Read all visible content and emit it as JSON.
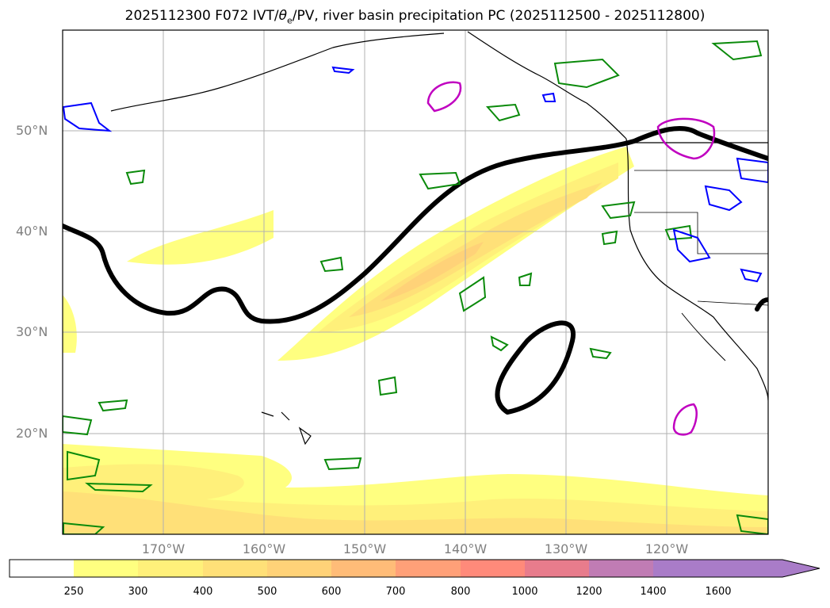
{
  "title": {
    "prefix": "2025112300 F072 IVT/",
    "theta": "θ",
    "theta_sub": "e",
    "suffix": "/PV, river basin precipitation PC (2025112500 - 2025112800)"
  },
  "latitude_labels": [
    "50°N",
    "40°N",
    "30°N",
    "20°N"
  ],
  "longitude_labels": [
    "170°W",
    "160°W",
    "150°W",
    "140°W",
    "130°W",
    "120°W"
  ],
  "colorbar": {
    "ticks": [
      "250",
      "300",
      "400",
      "500",
      "600",
      "700",
      "800",
      "1000",
      "1200",
      "1400",
      "1600"
    ],
    "colors": [
      "#ffffff",
      "#ffff80",
      "#fff07a",
      "#ffe078",
      "#ffd278",
      "#ffbc78",
      "#ffa078",
      "#ff8a7a",
      "#e87c8c",
      "#c07cb4",
      "#a97cc8"
    ],
    "extend": "max"
  },
  "map_colors": {
    "ocean": "#ffffff",
    "grid": "#b0b0b0",
    "coast": "#000000",
    "pv_contour": "#000000",
    "green_contour": "#0a8a0a",
    "blue_contour": "#0000ff",
    "magenta_contour": "#c000c0"
  },
  "extent": {
    "lon_min": 180,
    "lon_max": 110,
    "lat_min": 10,
    "lat_max": 60
  }
}
